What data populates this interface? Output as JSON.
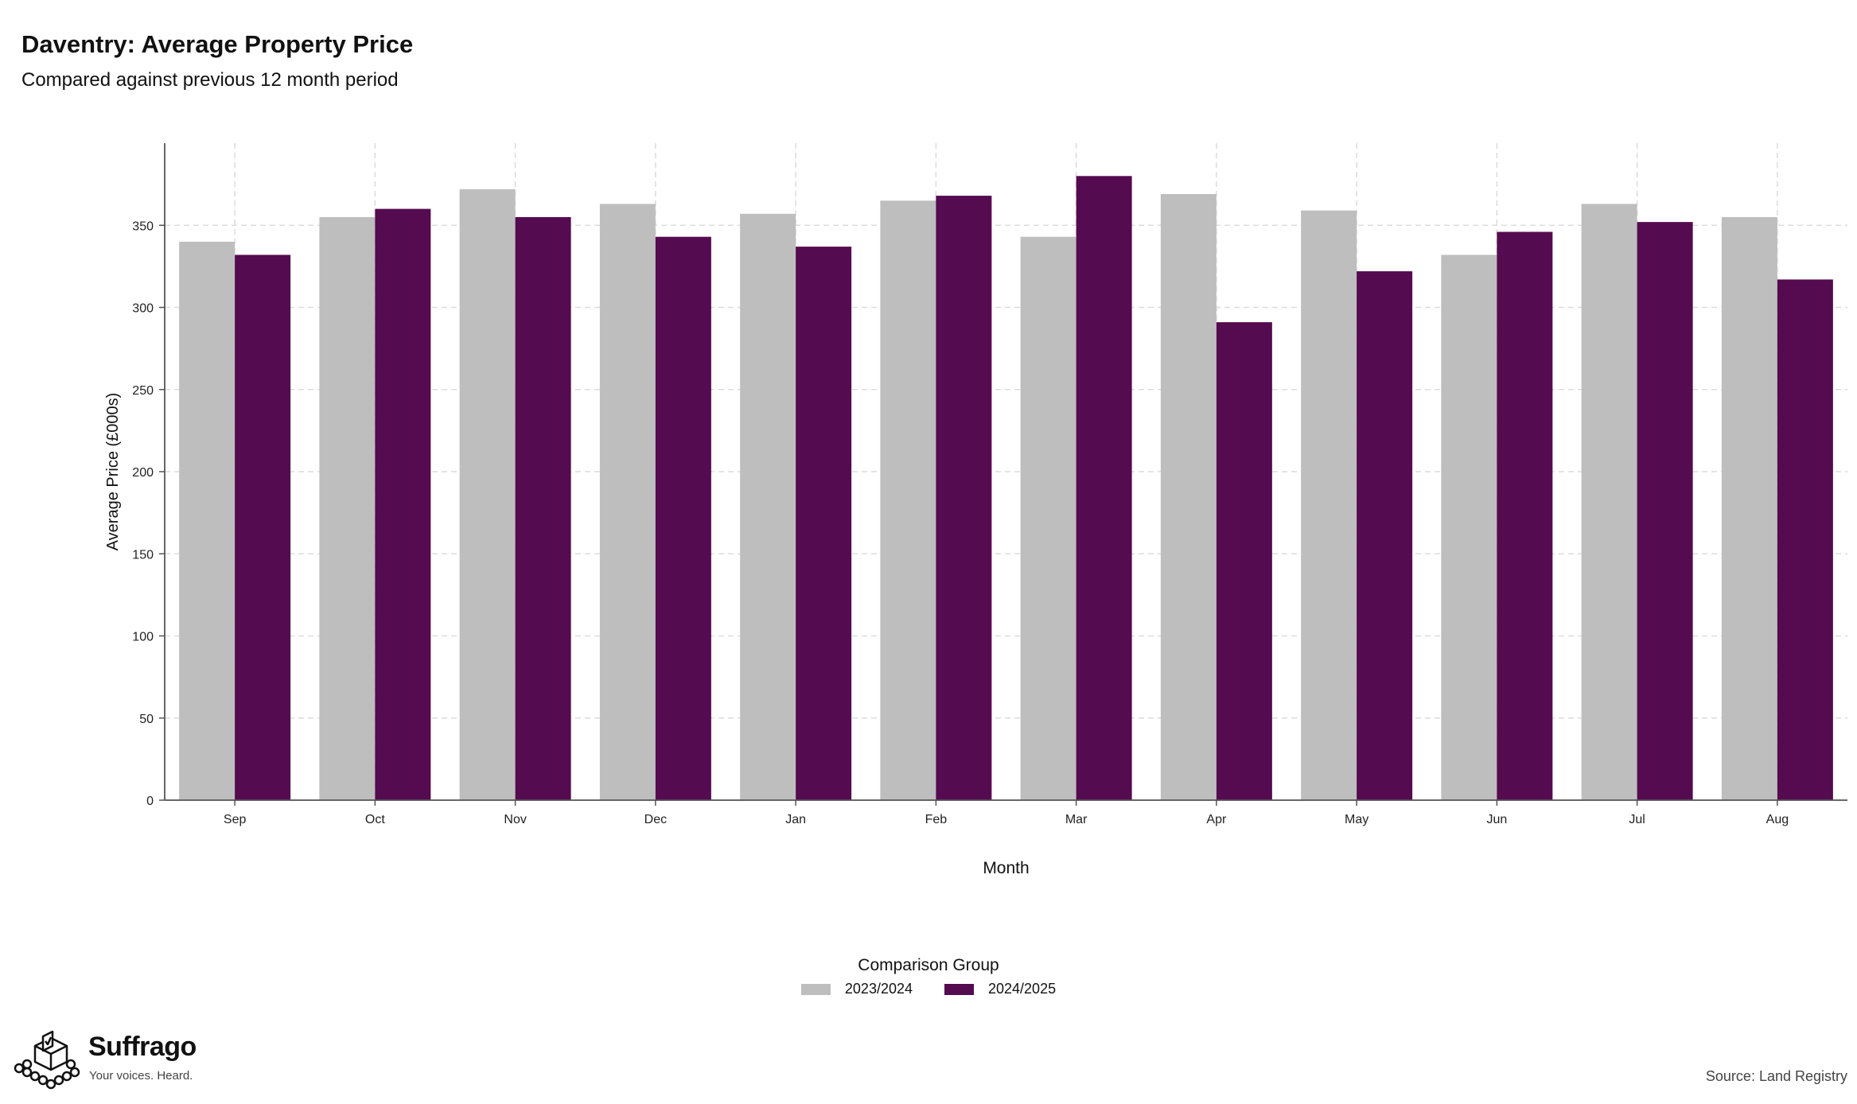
{
  "header": {
    "title": "Daventry: Average Property Price",
    "subtitle": "Compared against previous 12 month period"
  },
  "legend": {
    "title": "Comparison Group",
    "items": [
      {
        "label": "2023/2024",
        "color": "#bebebe"
      },
      {
        "label": "2024/2025",
        "color": "#550b50"
      }
    ]
  },
  "footer": {
    "brand": "Suffrago",
    "tagline": "Your voices. Heard.",
    "source": "Source: Land Registry",
    "logo_icon": "ballot-box-icon"
  },
  "chart_data": {
    "type": "bar",
    "title": "Daventry: Average Property Price",
    "subtitle": "Compared against previous 12 month period",
    "xlabel": "Month",
    "ylabel": "Average Price (£000s)",
    "ylim": [
      0,
      400
    ],
    "yticks": [
      0,
      50,
      100,
      150,
      200,
      250,
      300,
      350
    ],
    "grid": true,
    "legend_position": "bottom",
    "categories": [
      "Sep",
      "Oct",
      "Nov",
      "Dec",
      "Jan",
      "Feb",
      "Mar",
      "Apr",
      "May",
      "Jun",
      "Jul",
      "Aug"
    ],
    "series": [
      {
        "name": "2023/2024",
        "color": "#bebebe",
        "values": [
          340,
          355,
          372,
          363,
          357,
          365,
          343,
          369,
          359,
          332,
          363,
          355
        ]
      },
      {
        "name": "2024/2025",
        "color": "#550b50",
        "values": [
          332,
          360,
          355,
          343,
          337,
          368,
          380,
          291,
          322,
          346,
          352,
          317
        ]
      }
    ]
  }
}
